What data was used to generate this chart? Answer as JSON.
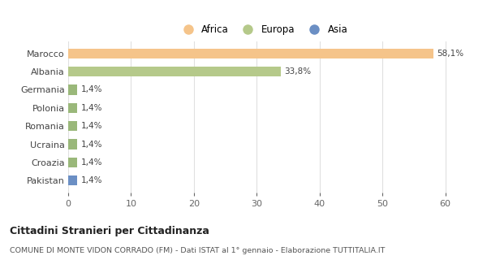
{
  "categories": [
    "Pakistan",
    "Croazia",
    "Ucraina",
    "Romania",
    "Polonia",
    "Germania",
    "Albania",
    "Marocco"
  ],
  "values": [
    1.4,
    1.4,
    1.4,
    1.4,
    1.4,
    1.4,
    33.8,
    58.1
  ],
  "bar_colors": [
    "#6b8fc4",
    "#9ab87a",
    "#9ab87a",
    "#9ab87a",
    "#9ab87a",
    "#9ab87a",
    "#b5c98a",
    "#f5c48a"
  ],
  "labels": [
    "1,4%",
    "1,4%",
    "1,4%",
    "1,4%",
    "1,4%",
    "1,4%",
    "33,8%",
    "58,1%"
  ],
  "legend_labels": [
    "Africa",
    "Europa",
    "Asia"
  ],
  "legend_colors": [
    "#f5c48a",
    "#b5c98a",
    "#6b8fc4"
  ],
  "title": "Cittadini Stranieri per Cittadinanza",
  "subtitle": "COMUNE DI MONTE VIDON CORRADO (FM) - Dati ISTAT al 1° gennaio - Elaborazione TUTTITALIA.IT",
  "xlim": [
    0,
    62
  ],
  "xticks": [
    0,
    10,
    20,
    30,
    40,
    50,
    60
  ],
  "background_color": "#ffffff",
  "grid_color": "#e0e0e0"
}
